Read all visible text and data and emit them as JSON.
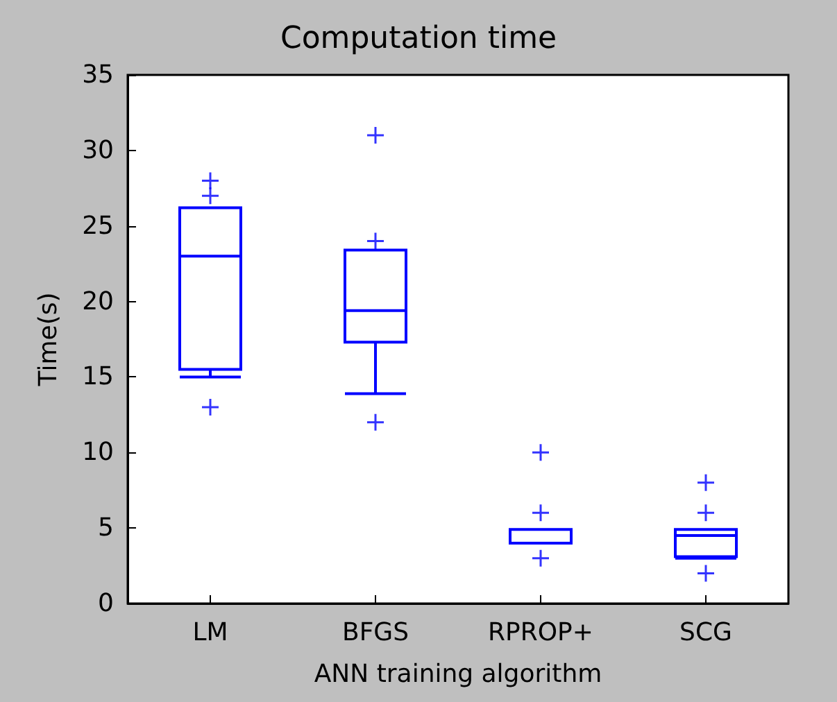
{
  "chart_data": {
    "type": "box",
    "title": "Computation time",
    "xlabel": "ANN training algorithm",
    "ylabel": "Time(s)",
    "categories": [
      "LM",
      "BFGS",
      "RPROP+",
      "SCG"
    ],
    "boxes": [
      {
        "low": 15.0,
        "q1": 15.5,
        "median": 23.0,
        "q3": 26.2,
        "high": 26.2,
        "outliers": [
          27,
          28,
          13
        ]
      },
      {
        "low": 13.9,
        "q1": 17.3,
        "median": 19.4,
        "q3": 23.4,
        "high": 23.4,
        "outliers": [
          31,
          24,
          12
        ]
      },
      {
        "low": 4.0,
        "q1": 4.0,
        "median": 4.0,
        "q3": 4.9,
        "high": 4.9,
        "outliers": [
          10,
          6,
          3
        ]
      },
      {
        "low": 3.0,
        "q1": 3.1,
        "median": 4.5,
        "q3": 4.9,
        "high": 4.9,
        "outliers": [
          8,
          6,
          2
        ]
      }
    ],
    "color": "#0000ff",
    "ylim": [
      0,
      35
    ],
    "yticks": [
      0,
      5,
      10,
      15,
      20,
      25,
      30,
      35
    ],
    "grid": false
  }
}
